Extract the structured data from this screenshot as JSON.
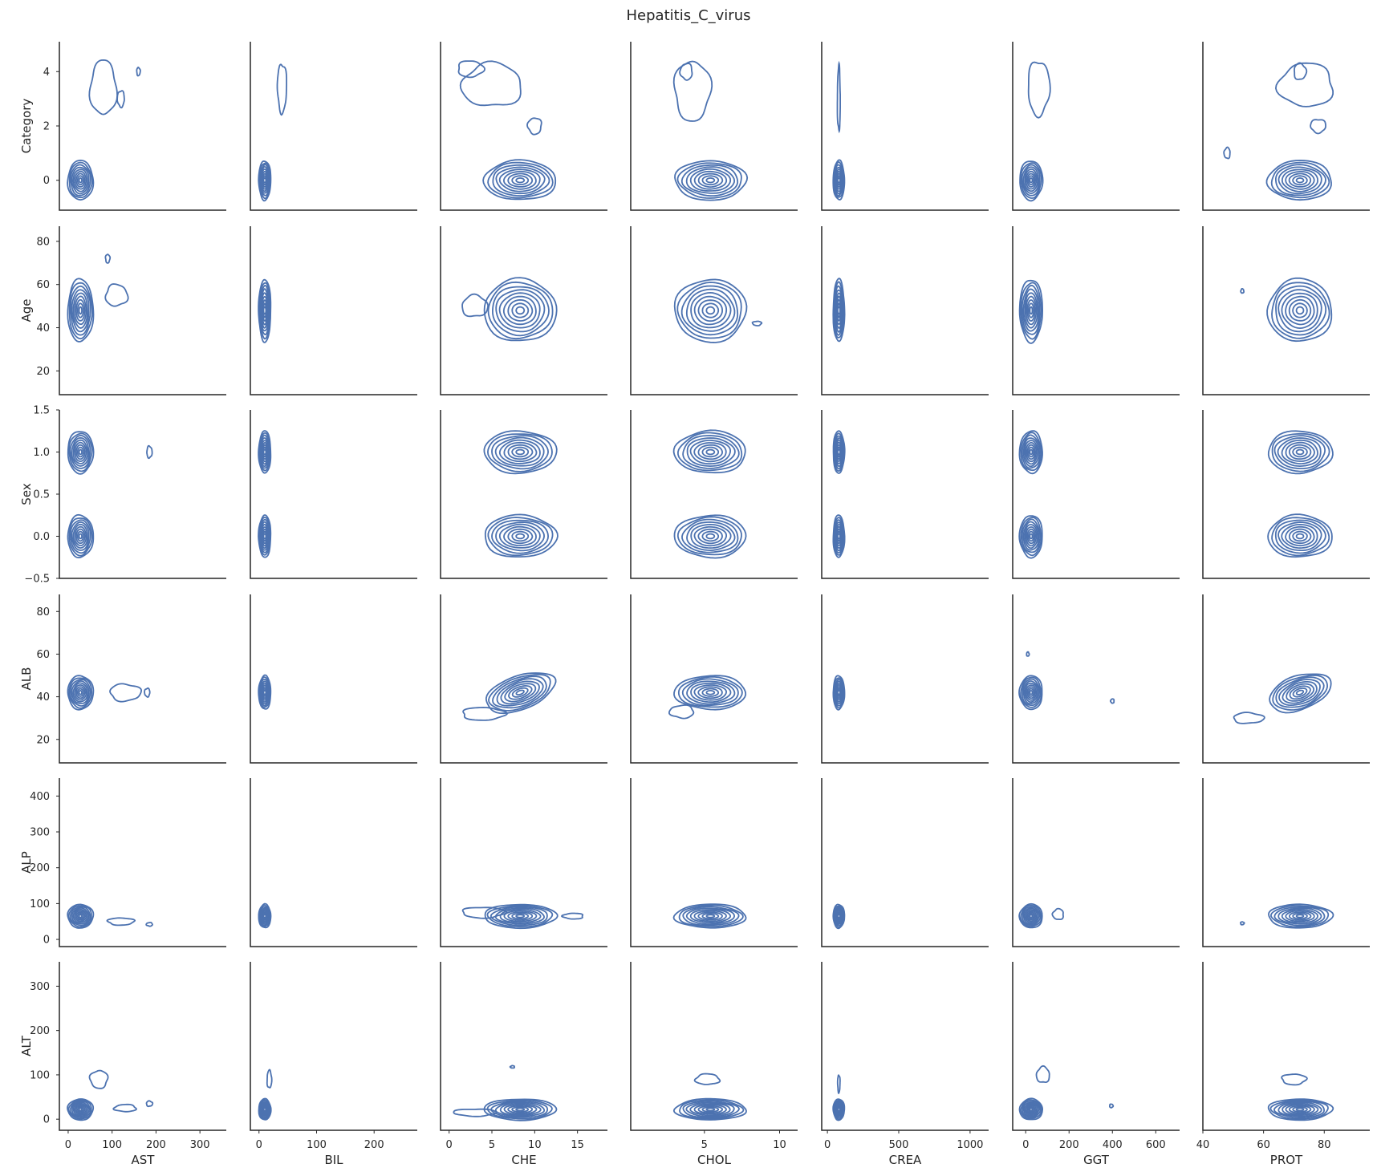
{
  "chart_data": {
    "type": "kde-pairgrid",
    "title": "Hepatitis_C_virus",
    "color": "#4c72b0",
    "columns": [
      {
        "label": "AST",
        "xlim": [
          -20,
          360
        ],
        "ticks": [
          {
            "v": 0,
            "t": "0"
          },
          {
            "v": 100,
            "t": "100"
          },
          {
            "v": 200,
            "t": "200"
          },
          {
            "v": 300,
            "t": "300"
          }
        ]
      },
      {
        "label": "BIL",
        "xlim": [
          -15,
          275
        ],
        "ticks": [
          {
            "v": 0,
            "t": "0"
          },
          {
            "v": 100,
            "t": "100"
          },
          {
            "v": 200,
            "t": "200"
          }
        ]
      },
      {
        "label": "CHE",
        "xlim": [
          -1,
          18.5
        ],
        "ticks": [
          {
            "v": 0,
            "t": "0"
          },
          {
            "v": 5,
            "t": "5"
          },
          {
            "v": 10,
            "t": "10"
          },
          {
            "v": 15,
            "t": "15"
          }
        ]
      },
      {
        "label": "CHOL",
        "xlim": [
          0.1,
          11.2
        ],
        "ticks": [
          {
            "v": 5,
            "t": "5"
          },
          {
            "v": 10,
            "t": "10"
          }
        ]
      },
      {
        "label": "CREA",
        "xlim": [
          -40,
          1130
        ],
        "ticks": [
          {
            "v": 0,
            "t": "0"
          },
          {
            "v": 500,
            "t": "500"
          },
          {
            "v": 1000,
            "t": "1000"
          }
        ]
      },
      {
        "label": "GGT",
        "xlim": [
          -60,
          710
        ],
        "ticks": [
          {
            "v": 0,
            "t": "0"
          },
          {
            "v": 200,
            "t": "200"
          },
          {
            "v": 400,
            "t": "400"
          },
          {
            "v": 600,
            "t": "600"
          }
        ]
      },
      {
        "label": "PROT",
        "xlim": [
          40,
          95
        ],
        "ticks": [
          {
            "v": 40,
            "t": "40"
          },
          {
            "v": 60,
            "t": "60"
          },
          {
            "v": 80,
            "t": "80"
          }
        ]
      }
    ],
    "rows": [
      {
        "label": "Category",
        "ylim": [
          -1.1,
          5.1
        ],
        "ticks": [
          {
            "v": 0,
            "t": "0"
          },
          {
            "v": 2,
            "t": "2"
          },
          {
            "v": 4,
            "t": "4"
          }
        ]
      },
      {
        "label": "Age",
        "ylim": [
          9,
          87
        ],
        "ticks": [
          {
            "v": 20,
            "t": "20"
          },
          {
            "v": 40,
            "t": "40"
          },
          {
            "v": 60,
            "t": "60"
          },
          {
            "v": 80,
            "t": "80"
          }
        ]
      },
      {
        "label": "Sex",
        "ylim": [
          -0.5,
          1.5
        ],
        "ticks": [
          {
            "v": -0.5,
            "t": "−0.5"
          },
          {
            "v": 0,
            "t": "0.0"
          },
          {
            "v": 0.5,
            "t": "0.5"
          },
          {
            "v": 1,
            "t": "1.0"
          },
          {
            "v": 1.5,
            "t": "1.5"
          }
        ]
      },
      {
        "label": "ALB",
        "ylim": [
          9,
          88
        ],
        "ticks": [
          {
            "v": 20,
            "t": "20"
          },
          {
            "v": 40,
            "t": "40"
          },
          {
            "v": 60,
            "t": "60"
          },
          {
            "v": 80,
            "t": "80"
          }
        ]
      },
      {
        "label": "ALP",
        "ylim": [
          -20,
          450
        ],
        "ticks": [
          {
            "v": 0,
            "t": "0"
          },
          {
            "v": 100,
            "t": "100"
          },
          {
            "v": 200,
            "t": "200"
          },
          {
            "v": 300,
            "t": "300"
          },
          {
            "v": 400,
            "t": "400"
          }
        ]
      },
      {
        "label": "ALT",
        "ylim": [
          -25,
          355
        ],
        "ticks": [
          {
            "v": 0,
            "t": "0"
          },
          {
            "v": 100,
            "t": "100"
          },
          {
            "v": 200,
            "t": "200"
          },
          {
            "v": 300,
            "t": "300"
          }
        ]
      }
    ],
    "x_centers": {
      "AST": 28,
      "BIL": 10,
      "CHE": 8.3,
      "CHOL": 5.4,
      "CREA": 80,
      "GGT": 25,
      "PROT": 72
    },
    "x_spreads": {
      "AST": 22,
      "BIL": 8,
      "CHE": 3.2,
      "CHOL": 1.8,
      "CREA": 30,
      "GGT": 40,
      "PROT": 8
    },
    "y_centers": {
      "Category": 0.0,
      "Age": 48,
      "ALB": 42,
      "ALP": 65,
      "ALT": 22
    },
    "y_spreads": {
      "Category": 0.55,
      "Age": 11,
      "ALB": 6,
      "ALP": 25,
      "ALT": 18
    },
    "sex_levels": [
      0,
      1
    ],
    "sex_spread": 0.2,
    "contour_levels": 9,
    "outer_extent": 2.4,
    "tail_blobs": [
      {
        "row": "Category",
        "col": "AST",
        "x": 80,
        "y": 3.4,
        "sx": 30,
        "sy": 1.0,
        "levels": 1
      },
      {
        "row": "Category",
        "col": "AST",
        "x": 160,
        "y": 4.0,
        "sx": 4,
        "sy": 0.15,
        "levels": 1
      },
      {
        "row": "Category",
        "col": "AST",
        "x": 120,
        "y": 3.0,
        "sx": 8,
        "sy": 0.3,
        "levels": 1
      },
      {
        "row": "Category",
        "col": "BIL",
        "x": 40,
        "y": 3.4,
        "sx": 8,
        "sy": 0.9,
        "levels": 1
      },
      {
        "row": "Category",
        "col": "CHE",
        "x": 5,
        "y": 3.5,
        "sx": 3.5,
        "sy": 0.8,
        "levels": 1
      },
      {
        "row": "Category",
        "col": "CHE",
        "x": 2.5,
        "y": 4.1,
        "sx": 1.5,
        "sy": 0.3,
        "levels": 1
      },
      {
        "row": "Category",
        "col": "CHE",
        "x": 10,
        "y": 2.0,
        "sx": 0.8,
        "sy": 0.3,
        "levels": 1
      },
      {
        "row": "Category",
        "col": "CHOL",
        "x": 4.2,
        "y": 3.3,
        "sx": 1.2,
        "sy": 1.1,
        "levels": 1
      },
      {
        "row": "Category",
        "col": "CHOL",
        "x": 3.8,
        "y": 4.0,
        "sx": 0.4,
        "sy": 0.3,
        "levels": 1
      },
      {
        "row": "Category",
        "col": "CREA",
        "x": 80,
        "y": 3.0,
        "sx": 10,
        "sy": 1.2,
        "levels": 1
      },
      {
        "row": "Category",
        "col": "GGT",
        "x": 60,
        "y": 3.4,
        "sx": 50,
        "sy": 1.0,
        "levels": 1
      },
      {
        "row": "Category",
        "col": "PROT",
        "x": 74,
        "y": 3.5,
        "sx": 9,
        "sy": 0.8,
        "levels": 1
      },
      {
        "row": "Category",
        "col": "PROT",
        "x": 72,
        "y": 4.0,
        "sx": 2,
        "sy": 0.3,
        "levels": 1
      },
      {
        "row": "Category",
        "col": "PROT",
        "x": 78,
        "y": 2.0,
        "sx": 2.5,
        "sy": 0.25,
        "levels": 1
      },
      {
        "row": "Category",
        "col": "PROT",
        "x": 48,
        "y": 1.0,
        "sx": 1.0,
        "sy": 0.2,
        "levels": 1
      },
      {
        "row": "Age",
        "col": "AST",
        "x": 110,
        "y": 55,
        "sx": 25,
        "sy": 5,
        "levels": 1
      },
      {
        "row": "Age",
        "col": "AST",
        "x": 90,
        "y": 72,
        "sx": 5,
        "sy": 2,
        "levels": 1
      },
      {
        "row": "Age",
        "col": "CHE",
        "x": 3,
        "y": 50,
        "sx": 1.5,
        "sy": 5,
        "levels": 1
      },
      {
        "row": "Age",
        "col": "CHOL",
        "x": 8.5,
        "y": 42,
        "sx": 0.3,
        "sy": 1,
        "levels": 1
      },
      {
        "row": "Age",
        "col": "PROT",
        "x": 53,
        "y": 57,
        "sx": 0.5,
        "sy": 1,
        "levels": 1
      },
      {
        "row": "Sex",
        "col": "AST",
        "x": 185,
        "y": 1.0,
        "sx": 6,
        "sy": 0.07,
        "levels": 1
      },
      {
        "row": "ALB",
        "col": "AST",
        "x": 130,
        "y": 42,
        "sx": 35,
        "sy": 4,
        "levels": 1
      },
      {
        "row": "ALB",
        "col": "AST",
        "x": 180,
        "y": 42,
        "sx": 6,
        "sy": 2,
        "levels": 1
      },
      {
        "row": "ALB",
        "col": "CHE",
        "x": 4,
        "y": 32,
        "sx": 2.5,
        "sy": 3,
        "levels": 1
      },
      {
        "row": "ALB",
        "col": "CHOL",
        "x": 3.5,
        "y": 33,
        "sx": 0.8,
        "sy": 3,
        "levels": 1
      },
      {
        "row": "ALB",
        "col": "GGT",
        "x": 400,
        "y": 38,
        "sx": 8,
        "sy": 1,
        "levels": 1
      },
      {
        "row": "ALB",
        "col": "GGT",
        "x": 10,
        "y": 60,
        "sx": 6,
        "sy": 1,
        "levels": 1
      },
      {
        "row": "ALB",
        "col": "PROT",
        "x": 55,
        "y": 30,
        "sx": 5,
        "sy": 2.5,
        "levels": 1
      },
      {
        "row": "ALP",
        "col": "AST",
        "x": 120,
        "y": 50,
        "sx": 30,
        "sy": 10,
        "levels": 1
      },
      {
        "row": "ALP",
        "col": "AST",
        "x": 185,
        "y": 42,
        "sx": 7,
        "sy": 5,
        "levels": 1
      },
      {
        "row": "ALP",
        "col": "CHE",
        "x": 4,
        "y": 75,
        "sx": 2.5,
        "sy": 15,
        "levels": 1
      },
      {
        "row": "ALP",
        "col": "CHE",
        "x": 14.5,
        "y": 65,
        "sx": 1.2,
        "sy": 8,
        "levels": 1
      },
      {
        "row": "ALP",
        "col": "GGT",
        "x": 150,
        "y": 70,
        "sx": 25,
        "sy": 15,
        "levels": 1
      },
      {
        "row": "ALP",
        "col": "PROT",
        "x": 53,
        "y": 45,
        "sx": 0.6,
        "sy": 4,
        "levels": 1
      },
      {
        "row": "ALT",
        "col": "AST",
        "x": 70,
        "y": 90,
        "sx": 20,
        "sy": 20,
        "levels": 1
      },
      {
        "row": "ALT",
        "col": "AST",
        "x": 130,
        "y": 25,
        "sx": 25,
        "sy": 8,
        "levels": 1
      },
      {
        "row": "ALT",
        "col": "AST",
        "x": 185,
        "y": 35,
        "sx": 7,
        "sy": 6,
        "levels": 1
      },
      {
        "row": "ALT",
        "col": "BIL",
        "x": 18,
        "y": 90,
        "sx": 4,
        "sy": 20,
        "levels": 1
      },
      {
        "row": "ALT",
        "col": "CHE",
        "x": 3,
        "y": 15,
        "sx": 2.5,
        "sy": 8,
        "levels": 1
      },
      {
        "row": "ALT",
        "col": "CHE",
        "x": 7.4,
        "y": 118,
        "sx": 0.25,
        "sy": 2.5,
        "levels": 1
      },
      {
        "row": "ALT",
        "col": "CHOL",
        "x": 5.2,
        "y": 90,
        "sx": 0.8,
        "sy": 12,
        "levels": 1
      },
      {
        "row": "ALT",
        "col": "CREA",
        "x": 80,
        "y": 80,
        "sx": 8,
        "sy": 20,
        "levels": 1
      },
      {
        "row": "ALT",
        "col": "GGT",
        "x": 80,
        "y": 100,
        "sx": 30,
        "sy": 18,
        "levels": 1
      },
      {
        "row": "ALT",
        "col": "GGT",
        "x": 395,
        "y": 30,
        "sx": 8,
        "sy": 4,
        "levels": 1
      },
      {
        "row": "ALT",
        "col": "PROT",
        "x": 70,
        "y": 90,
        "sx": 4,
        "sy": 12,
        "levels": 1
      }
    ]
  }
}
